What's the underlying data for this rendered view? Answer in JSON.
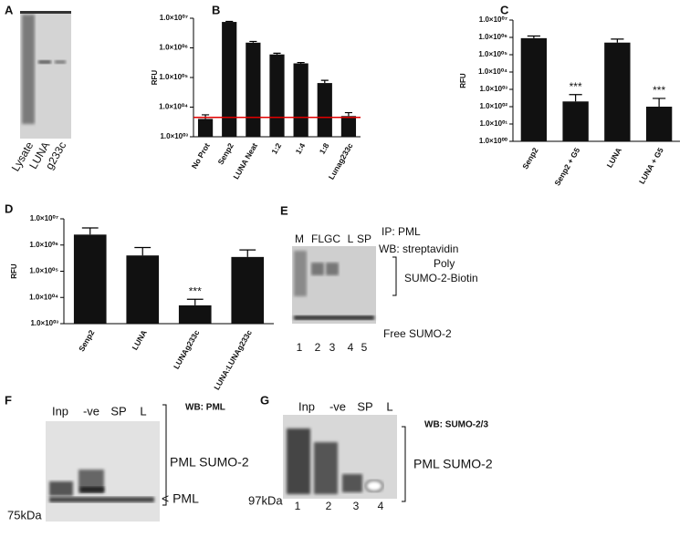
{
  "chart_data": [
    {
      "type": "bar",
      "panel": "B",
      "ylabel": "RFU",
      "log_scale": true,
      "color": "#111111",
      "categories": [
        "No Prot",
        "Senp2",
        "LUNA Neat",
        "1:2",
        "1:4",
        "1:8",
        "Lunag233c"
      ],
      "values": [
        4000,
        7500000,
        1500000,
        600000,
        300000,
        65000,
        5000
      ],
      "errors": [
        1500,
        300000,
        150000,
        60000,
        20000,
        15000,
        1500
      ],
      "reference_line": {
        "value": 4500,
        "color": "#e00000"
      },
      "ylim": [
        1000,
        10000000
      ],
      "yticks": [
        {
          "value": 1000,
          "label": "1.0×10⁰³"
        },
        {
          "value": 10000,
          "label": "1.0×10⁰⁴"
        },
        {
          "value": 100000,
          "label": "1.0×10⁰⁵"
        },
        {
          "value": 1000000,
          "label": "1.0×10⁰⁶"
        },
        {
          "value": 10000000,
          "label": "1.0×10⁰⁷"
        }
      ]
    },
    {
      "type": "bar",
      "panel": "C",
      "ylabel": "RFU",
      "log_scale": true,
      "color": "#111111",
      "categories": [
        "Senp2",
        "Senp2 + G5",
        "LUNA",
        "LUNA + G5"
      ],
      "values": [
        900000,
        200,
        500000,
        100
      ],
      "errors": [
        300000,
        300,
        300000,
        200
      ],
      "annotations": [
        null,
        "***",
        null,
        "***"
      ],
      "ylim": [
        1,
        10000000
      ],
      "yticks": [
        {
          "value": 1,
          "label": "1.0×10⁰⁰"
        },
        {
          "value": 10,
          "label": "1.0×10⁰¹"
        },
        {
          "value": 100,
          "label": "1.0×10⁰²"
        },
        {
          "value": 1000,
          "label": "1.0×10⁰³"
        },
        {
          "value": 10000,
          "label": "1.0×10⁰⁴"
        },
        {
          "value": 100000,
          "label": "1.0×10⁰⁵"
        },
        {
          "value": 1000000,
          "label": "1.0×10⁰⁶"
        },
        {
          "value": 10000000,
          "label": "1.0×10⁰⁷"
        }
      ]
    },
    {
      "type": "bar",
      "panel": "D",
      "ylabel": "RFU",
      "log_scale": true,
      "color": "#111111",
      "categories": [
        "Senp2",
        "LUNA",
        "LUNAg233c",
        "LUNA:LUNAg233c"
      ],
      "values": [
        2500000,
        400000,
        5000,
        350000
      ],
      "errors": [
        2000000,
        400000,
        3500,
        300000
      ],
      "annotations": [
        null,
        null,
        "***",
        null
      ],
      "ylim": [
        1000,
        10000000
      ],
      "yticks": [
        {
          "value": 1000,
          "label": "1.0×10⁰³"
        },
        {
          "value": 10000,
          "label": "1.0×10⁰⁴"
        },
        {
          "value": 100000,
          "label": "1.0×10⁰⁵"
        },
        {
          "value": 1000000,
          "label": "1.0×10⁰⁶"
        },
        {
          "value": 10000000,
          "label": "1.0×10⁰⁷"
        }
      ]
    }
  ],
  "gels": [
    {
      "panel": "A",
      "lane_labels": [
        "Lysate",
        "LUNA",
        "g233c"
      ]
    },
    {
      "panel": "E",
      "lane_labels": [
        "M",
        "FL",
        "GC",
        "L",
        "SP"
      ],
      "lane_numbers": [
        "1",
        "2",
        "3",
        "4",
        "5"
      ],
      "notes": [
        "IP: PML",
        "WB: streptavidin",
        "Poly",
        "SUMO-2-Biotin",
        "Free SUMO-2"
      ]
    },
    {
      "panel": "F",
      "lane_labels": [
        "Inp",
        "-ve",
        "SP",
        "L"
      ],
      "notes": [
        "WB: PML",
        "PML SUMO-2",
        "< PML",
        "75kDa"
      ]
    },
    {
      "panel": "G",
      "lane_labels": [
        "Inp",
        "-ve",
        "SP",
        "L"
      ],
      "lane_numbers": [
        "1",
        "2",
        "3",
        "4"
      ],
      "notes": [
        "WB: SUMO-2/3",
        "PML SUMO-2",
        "97kDa"
      ]
    }
  ]
}
